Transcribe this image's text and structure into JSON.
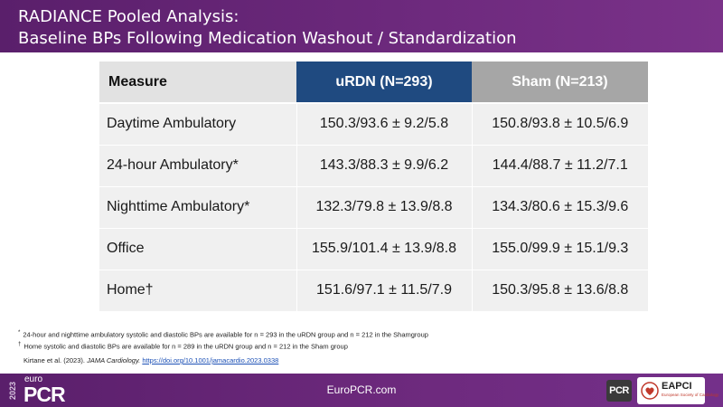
{
  "header": {
    "title_line1": "RADIANCE Pooled Analysis:",
    "title_line2": "Baseline BPs Following Medication Washout / Standardization"
  },
  "table": {
    "columns": [
      "Measure",
      "uRDN (N=293)",
      "Sham (N=213)"
    ],
    "rows": [
      {
        "measure": "Daytime Ambulatory",
        "urdn": "150.3/93.6 ± 9.2/5.8",
        "sham": "150.8/93.8 ± 10.5/6.9"
      },
      {
        "measure": "24-hour Ambulatory*",
        "urdn": "143.3/88.3 ± 9.9/6.2",
        "sham": "144.4/88.7 ± 11.2/7.1"
      },
      {
        "measure": "Nighttime Ambulatory*",
        "urdn": "132.3/79.8 ± 13.9/8.8",
        "sham": "134.3/80.6 ± 15.3/9.6"
      },
      {
        "measure": "Office",
        "urdn": "155.9/101.4 ± 13.9/8.8",
        "sham": "155.0/99.9 ± 15.1/9.3"
      },
      {
        "measure": "Home†",
        "urdn": "151.6/97.1 ± 11.5/7.9",
        "sham": "150.3/95.8 ± 13.6/8.8"
      }
    ],
    "colors": {
      "urdn_header": "#1f4a80",
      "sham_header": "#a6a6a6",
      "measure_header": "#e2e2e2",
      "row_bg": "#f0f0f0"
    }
  },
  "footnotes": {
    "note1_marker": "*",
    "note1": "24-hour and nighttime ambulatory systolic and diastolic BPs are available for n = 293 in the uRDN group and n = 212 in the Shamgroup",
    "note2_marker": "†",
    "note2": "Home systolic and diastolic BPs are available for n = 289 in the uRDN group and n = 212 in the Sham group",
    "ref_prefix": "Kirtane et al. (2023).",
    "ref_journal": "JAMA Cardiology.",
    "ref_doi": "https://doi.org/10.1001/jamacardio.2023.0338"
  },
  "footer": {
    "logo_year": "2023",
    "logo_euro": "euro",
    "logo_pcr": "PCR",
    "url": "EuroPCR.com",
    "pcr_badge": "PCR",
    "eapci_label": "EAPCI",
    "eapci_sub": "European Society of Cardiology",
    "brand_color": "#6e2a7e"
  }
}
